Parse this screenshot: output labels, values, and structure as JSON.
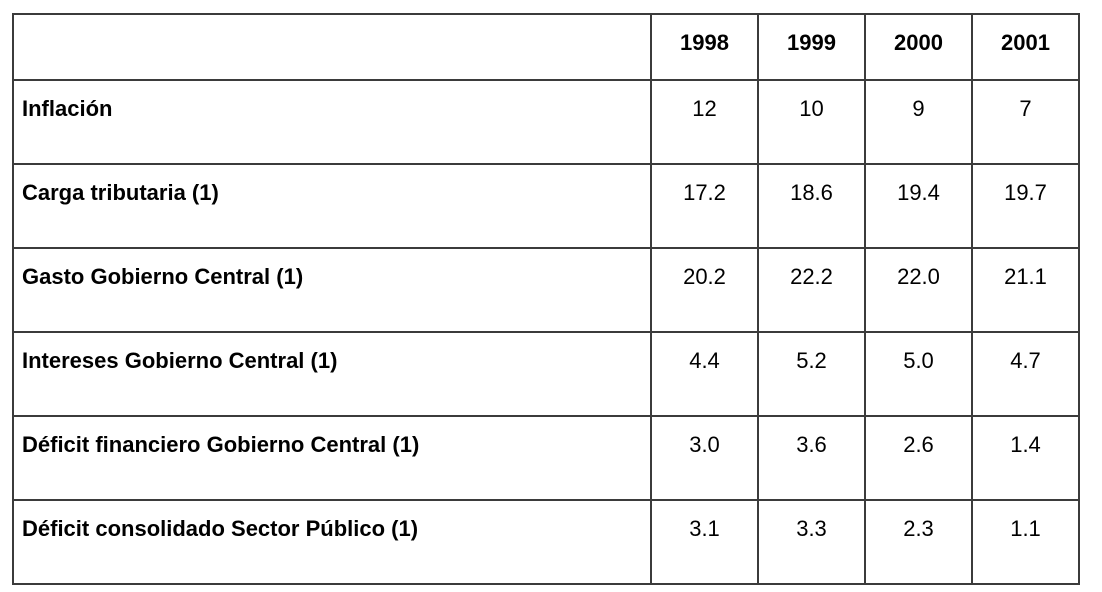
{
  "colors": {
    "border": "#3b3b3b",
    "text": "#000000",
    "background": "#ffffff"
  },
  "table": {
    "columns": [
      "1998",
      "1999",
      "2000",
      "2001"
    ],
    "rows": [
      {
        "label": "Inflación",
        "values": [
          "12",
          "10",
          "9",
          "7"
        ]
      },
      {
        "label": "Carga tributaria (1)",
        "values": [
          "17.2",
          "18.6",
          "19.4",
          "19.7"
        ]
      },
      {
        "label": "Gasto Gobierno Central (1)",
        "values": [
          "20.2",
          "22.2",
          "22.0",
          "21.1"
        ]
      },
      {
        "label": "Intereses Gobierno Central (1)",
        "values": [
          "4.4",
          "5.2",
          "5.0",
          "4.7"
        ]
      },
      {
        "label": "Déficit financiero Gobierno Central (1)",
        "values": [
          "3.0",
          "3.6",
          "2.6",
          "1.4"
        ]
      },
      {
        "label": "Déficit consolidado Sector Público (1)",
        "values": [
          "3.1",
          "3.3",
          "2.3",
          "1.1"
        ]
      }
    ]
  },
  "chart_data": {
    "type": "table",
    "categories": [
      "1998",
      "1999",
      "2000",
      "2001"
    ],
    "series": [
      {
        "name": "Inflación",
        "values": [
          12,
          10,
          9,
          7
        ]
      },
      {
        "name": "Carga tributaria (1)",
        "values": [
          17.2,
          18.6,
          19.4,
          19.7
        ]
      },
      {
        "name": "Gasto Gobierno Central (1)",
        "values": [
          20.2,
          22.2,
          22.0,
          21.1
        ]
      },
      {
        "name": "Intereses Gobierno Central (1)",
        "values": [
          4.4,
          5.2,
          5.0,
          4.7
        ]
      },
      {
        "name": "Déficit financiero Gobierno Central (1)",
        "values": [
          3.0,
          3.6,
          2.6,
          1.4
        ]
      },
      {
        "name": "Déficit consolidado Sector Público (1)",
        "values": [
          3.1,
          3.3,
          2.3,
          1.1
        ]
      }
    ],
    "title": ""
  }
}
